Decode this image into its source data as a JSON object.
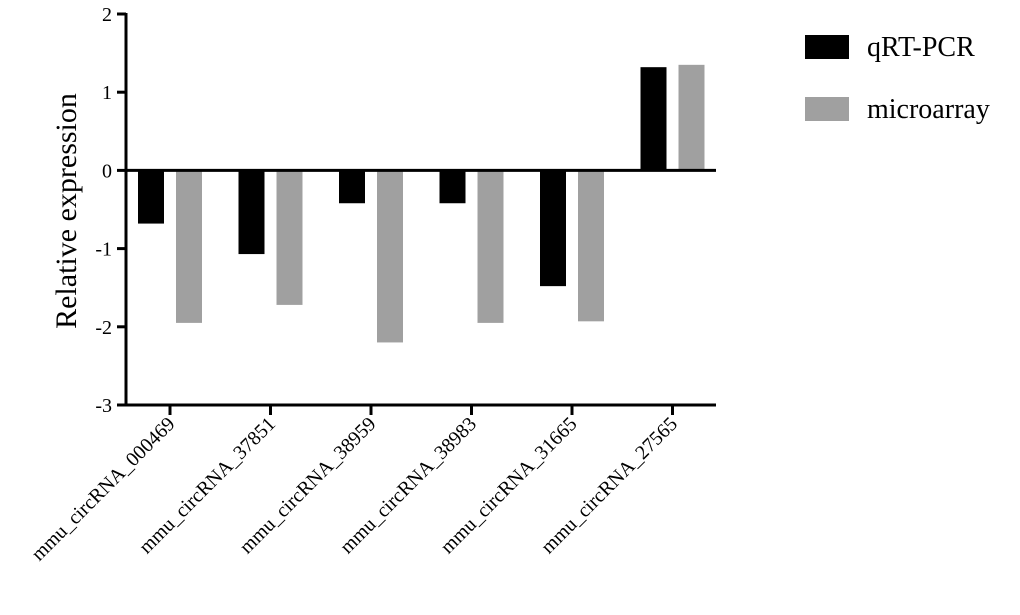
{
  "chart_data": {
    "type": "bar",
    "title": "",
    "xlabel": "",
    "ylabel": "Relative expression",
    "ylim": [
      -3,
      2
    ],
    "yticks": [
      2,
      1,
      0,
      -1,
      -2,
      -3
    ],
    "categories": [
      "mmu_circRNA_000469",
      "mmu_circRNA_37851",
      "mmu_circRNA_38959",
      "mmu_circRNA_38983",
      "mmu_circRNA_31665",
      "mmu_circRNA_27565"
    ],
    "series": [
      {
        "name": "qRT-PCR",
        "color": "#000000",
        "values": [
          -0.68,
          -1.07,
          -0.42,
          -0.42,
          -1.48,
          1.32
        ]
      },
      {
        "name": "microarray",
        "color": "#a0a0a0",
        "values": [
          -1.95,
          -1.72,
          -2.2,
          -1.95,
          -1.93,
          1.35
        ]
      }
    ],
    "legend_position": "top-right",
    "grid": false
  }
}
